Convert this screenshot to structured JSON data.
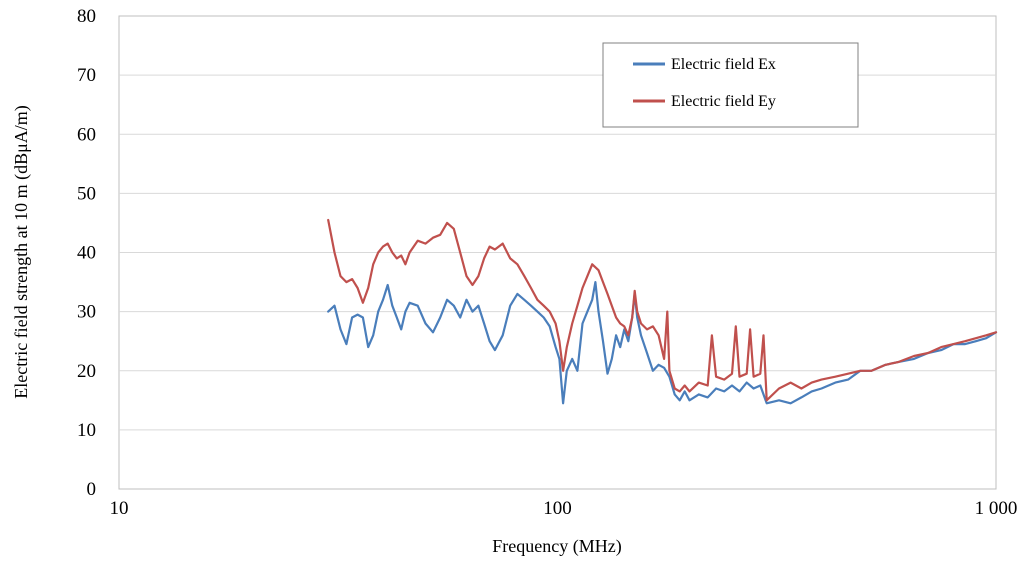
{
  "chart_data": {
    "type": "line",
    "title": "",
    "xlabel": "Frequency (MHz)",
    "ylabel": "Electric field strength at 10 m (dBμA/m)",
    "x_scale": "log",
    "xlim": [
      10,
      1000
    ],
    "ylim": [
      0,
      80
    ],
    "x_ticks": [
      {
        "value": 10,
        "label": "10"
      },
      {
        "value": 100,
        "label": "100"
      },
      {
        "value": 1000,
        "label": "1 000"
      }
    ],
    "y_ticks": [
      {
        "value": 0,
        "label": "0"
      },
      {
        "value": 10,
        "label": "10"
      },
      {
        "value": 20,
        "label": "20"
      },
      {
        "value": 30,
        "label": "30"
      },
      {
        "value": 40,
        "label": "40"
      },
      {
        "value": 50,
        "label": "50"
      },
      {
        "value": 60,
        "label": "60"
      },
      {
        "value": 70,
        "label": "70"
      },
      {
        "value": 80,
        "label": "80"
      }
    ],
    "grid": {
      "horizontal": true,
      "vertical": false
    },
    "legend": {
      "position": "top-right"
    },
    "series": [
      {
        "name": "Electric field Ex",
        "color": "#4a7ebb",
        "points": [
          [
            30,
            30
          ],
          [
            31,
            31
          ],
          [
            32,
            27
          ],
          [
            33,
            24.5
          ],
          [
            34,
            29
          ],
          [
            35,
            29.5
          ],
          [
            36,
            29
          ],
          [
            37,
            24
          ],
          [
            38,
            26
          ],
          [
            39,
            30
          ],
          [
            40,
            32
          ],
          [
            41,
            34.5
          ],
          [
            42,
            31
          ],
          [
            43,
            29
          ],
          [
            44,
            27
          ],
          [
            45,
            30
          ],
          [
            46,
            31.5
          ],
          [
            48,
            31
          ],
          [
            50,
            28
          ],
          [
            52,
            26.5
          ],
          [
            54,
            29
          ],
          [
            56,
            32
          ],
          [
            58,
            31
          ],
          [
            60,
            29
          ],
          [
            62,
            32
          ],
          [
            64,
            30
          ],
          [
            66,
            31
          ],
          [
            68,
            28
          ],
          [
            70,
            25
          ],
          [
            72,
            23.5
          ],
          [
            75,
            26
          ],
          [
            78,
            31
          ],
          [
            81,
            33
          ],
          [
            84,
            32
          ],
          [
            87,
            31
          ],
          [
            90,
            30
          ],
          [
            93,
            29
          ],
          [
            96,
            27.5
          ],
          [
            99,
            24
          ],
          [
            101,
            22
          ],
          [
            103,
            14.5
          ],
          [
            105,
            20
          ],
          [
            108,
            22
          ],
          [
            111,
            20
          ],
          [
            114,
            28
          ],
          [
            117,
            30
          ],
          [
            120,
            32
          ],
          [
            122,
            35
          ],
          [
            124,
            30
          ],
          [
            127,
            25
          ],
          [
            130,
            19.5
          ],
          [
            133,
            22
          ],
          [
            136,
            26
          ],
          [
            139,
            24
          ],
          [
            142,
            27
          ],
          [
            145,
            25
          ],
          [
            148,
            29
          ],
          [
            150,
            33
          ],
          [
            152,
            29
          ],
          [
            155,
            26
          ],
          [
            160,
            23
          ],
          [
            165,
            20
          ],
          [
            170,
            21
          ],
          [
            175,
            20.5
          ],
          [
            180,
            19
          ],
          [
            185,
            16
          ],
          [
            190,
            15
          ],
          [
            195,
            16.5
          ],
          [
            200,
            15
          ],
          [
            210,
            16
          ],
          [
            220,
            15.5
          ],
          [
            230,
            17
          ],
          [
            240,
            16.5
          ],
          [
            250,
            17.5
          ],
          [
            260,
            16.5
          ],
          [
            270,
            18
          ],
          [
            280,
            17
          ],
          [
            290,
            17.5
          ],
          [
            300,
            14.5
          ],
          [
            320,
            15
          ],
          [
            340,
            14.5
          ],
          [
            360,
            15.5
          ],
          [
            380,
            16.5
          ],
          [
            400,
            17
          ],
          [
            430,
            18
          ],
          [
            460,
            18.5
          ],
          [
            490,
            20
          ],
          [
            520,
            20
          ],
          [
            560,
            21
          ],
          [
            600,
            21.5
          ],
          [
            650,
            22
          ],
          [
            700,
            23
          ],
          [
            750,
            23.5
          ],
          [
            800,
            24.5
          ],
          [
            850,
            24.5
          ],
          [
            900,
            25
          ],
          [
            950,
            25.5
          ],
          [
            1000,
            26.5
          ]
        ]
      },
      {
        "name": "Electric field Ey",
        "color": "#c0504d",
        "points": [
          [
            30,
            45.5
          ],
          [
            31,
            40
          ],
          [
            32,
            36
          ],
          [
            33,
            35
          ],
          [
            34,
            35.5
          ],
          [
            35,
            34
          ],
          [
            36,
            31.5
          ],
          [
            37,
            34
          ],
          [
            38,
            38
          ],
          [
            39,
            40
          ],
          [
            40,
            41
          ],
          [
            41,
            41.5
          ],
          [
            42,
            40
          ],
          [
            43,
            39
          ],
          [
            44,
            39.5
          ],
          [
            45,
            38
          ],
          [
            46,
            40
          ],
          [
            48,
            42
          ],
          [
            50,
            41.5
          ],
          [
            52,
            42.5
          ],
          [
            54,
            43
          ],
          [
            56,
            45
          ],
          [
            58,
            44
          ],
          [
            60,
            40
          ],
          [
            62,
            36
          ],
          [
            64,
            34.5
          ],
          [
            66,
            36
          ],
          [
            68,
            39
          ],
          [
            70,
            41
          ],
          [
            72,
            40.5
          ],
          [
            75,
            41.5
          ],
          [
            78,
            39
          ],
          [
            81,
            38
          ],
          [
            84,
            36
          ],
          [
            87,
            34
          ],
          [
            90,
            32
          ],
          [
            93,
            31
          ],
          [
            96,
            30
          ],
          [
            99,
            28
          ],
          [
            101,
            25
          ],
          [
            103,
            20
          ],
          [
            105,
            24
          ],
          [
            108,
            28
          ],
          [
            111,
            31
          ],
          [
            114,
            34
          ],
          [
            117,
            36
          ],
          [
            120,
            38
          ],
          [
            124,
            37
          ],
          [
            127,
            35
          ],
          [
            130,
            33
          ],
          [
            133,
            31
          ],
          [
            136,
            29
          ],
          [
            139,
            28
          ],
          [
            142,
            27.5
          ],
          [
            145,
            26
          ],
          [
            148,
            29
          ],
          [
            150,
            33.5
          ],
          [
            152,
            30
          ],
          [
            155,
            28
          ],
          [
            160,
            27
          ],
          [
            165,
            27.5
          ],
          [
            170,
            26
          ],
          [
            175,
            22
          ],
          [
            178,
            30
          ],
          [
            180,
            20
          ],
          [
            185,
            17
          ],
          [
            190,
            16.5
          ],
          [
            195,
            17.5
          ],
          [
            200,
            16.5
          ],
          [
            210,
            18
          ],
          [
            220,
            17.5
          ],
          [
            225,
            26
          ],
          [
            230,
            19
          ],
          [
            240,
            18.5
          ],
          [
            250,
            19.5
          ],
          [
            255,
            27.5
          ],
          [
            260,
            19
          ],
          [
            270,
            19.5
          ],
          [
            275,
            27
          ],
          [
            280,
            19
          ],
          [
            290,
            19.5
          ],
          [
            295,
            26
          ],
          [
            300,
            15
          ],
          [
            320,
            17
          ],
          [
            340,
            18
          ],
          [
            360,
            17
          ],
          [
            380,
            18
          ],
          [
            400,
            18.5
          ],
          [
            430,
            19
          ],
          [
            460,
            19.5
          ],
          [
            490,
            20
          ],
          [
            520,
            20
          ],
          [
            560,
            21
          ],
          [
            600,
            21.5
          ],
          [
            650,
            22.5
          ],
          [
            700,
            23
          ],
          [
            750,
            24
          ],
          [
            800,
            24.5
          ],
          [
            850,
            25
          ],
          [
            900,
            25.5
          ],
          [
            950,
            26
          ],
          [
            1000,
            26.5
          ]
        ]
      }
    ]
  }
}
